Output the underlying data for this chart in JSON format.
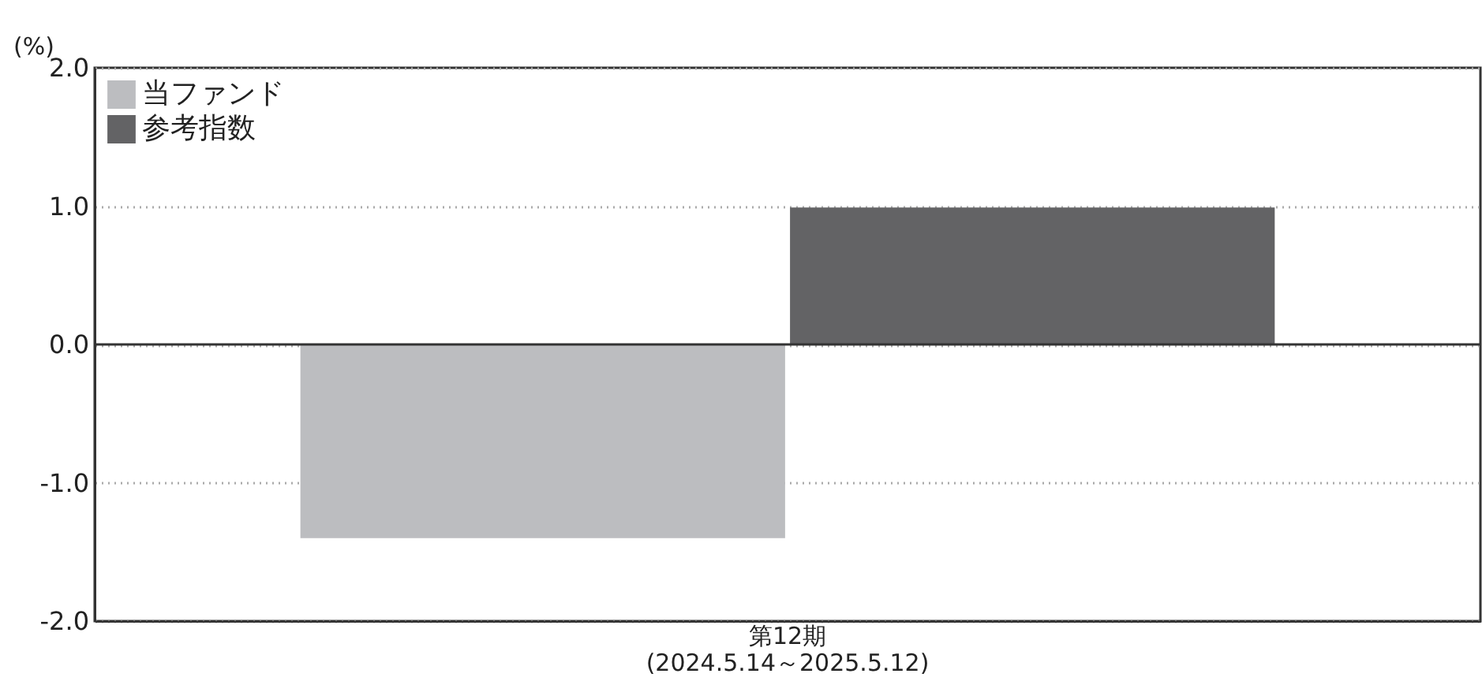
{
  "chart_data": {
    "type": "bar",
    "ylabel": "(%)",
    "categories": [
      "第12期\n(2024.5.14～2025.5.12)"
    ],
    "series": [
      {
        "name": "当ファンド",
        "color": "#bcbdc0",
        "values": [
          -1.4
        ]
      },
      {
        "name": "参考指数",
        "color": "#636365",
        "values": [
          0.99
        ]
      }
    ],
    "ylim": [
      -2,
      2
    ],
    "yticks": [
      {
        "value": -2,
        "label": "-2.0"
      },
      {
        "value": -1,
        "label": "-1.0"
      },
      {
        "value": 0,
        "label": "0.0"
      },
      {
        "value": 1,
        "label": "1.0"
      },
      {
        "value": 2,
        "label": "2.0"
      }
    ],
    "grid": "y",
    "line_style": "dotted",
    "legend": "top left",
    "ref_lines": [
      {
        "axis": "y",
        "value": 0,
        "color": "#333333",
        "line_style": "solid"
      }
    ]
  }
}
